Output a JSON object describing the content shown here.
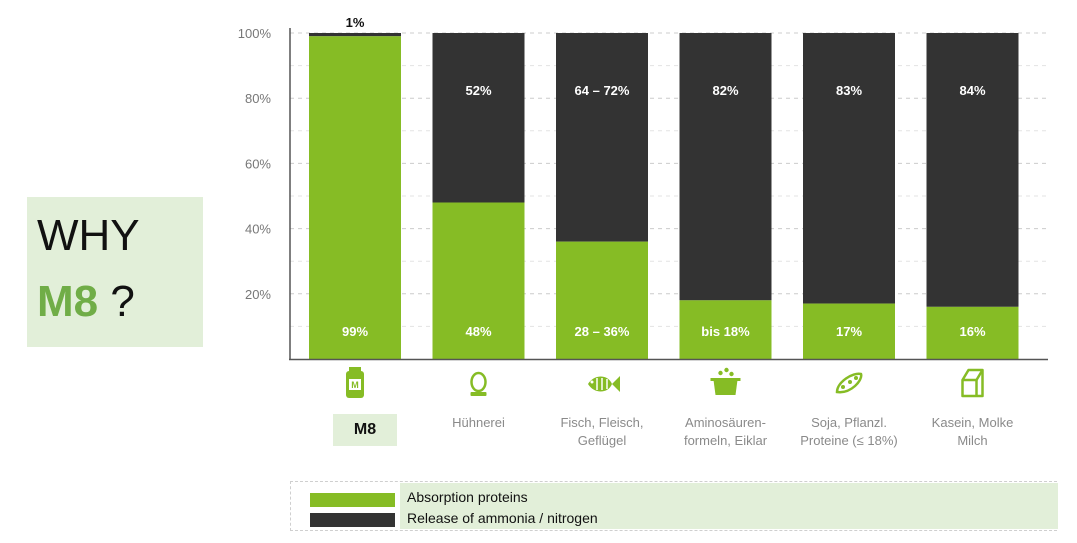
{
  "why": {
    "line1": "WHY",
    "m8": "M8",
    "qmark": "?"
  },
  "colors": {
    "absorption": "#86bc25",
    "release": "#333333",
    "highlight_bg": "#e2efd9",
    "m8_text": "#70ad47"
  },
  "chart_data": {
    "type": "bar",
    "stacked": true,
    "categories": [
      "M8",
      "Hühnerei",
      "Fisch, Fleisch, Geflügel",
      "Aminosäuren-formeln, Eiklar",
      "Soja, Pflanzl. Proteine (≤ 18%)",
      "Kasein, Molke Milch"
    ],
    "category_lines": [
      [
        "M8"
      ],
      [
        "Hühnerei"
      ],
      [
        "Fisch, Fleisch,",
        "Geflügel"
      ],
      [
        "Aminosäuren-",
        "formeln, Eiklar"
      ],
      [
        "Soja, Pflanzl.",
        "Proteine (≤ 18%)"
      ],
      [
        "Kasein, Molke",
        "Milch"
      ]
    ],
    "category_icons": [
      "pill-bottle-icon",
      "egg-icon",
      "fish-icon",
      "pot-icon",
      "soybean-icon",
      "milk-carton-icon"
    ],
    "series": [
      {
        "name": "Absorption proteins",
        "values": [
          99,
          48,
          36,
          18,
          17,
          16
        ],
        "labels": [
          "99%",
          "48%",
          "28 – 36%",
          "bis 18%",
          "17%",
          "16%"
        ]
      },
      {
        "name": "Release of ammonia / nitrogen",
        "values": [
          1,
          52,
          64,
          82,
          83,
          84
        ],
        "labels": [
          "1%",
          "52%",
          "64 – 72%",
          "82%",
          "83%",
          "84%"
        ]
      }
    ],
    "yticks": [
      "20%",
      "40%",
      "60%",
      "80%",
      "100%"
    ],
    "ylim": [
      0,
      100
    ],
    "grid": true,
    "legend_position": "bottom"
  }
}
